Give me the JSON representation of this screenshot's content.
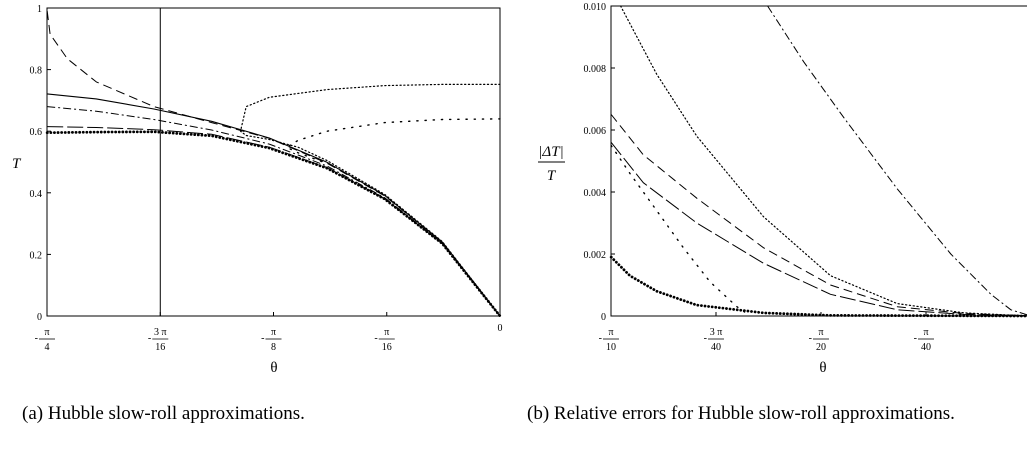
{
  "captions": {
    "a_label": "(a)",
    "a_text": "Hubble slow-roll approximations.",
    "b_label": "(b)",
    "b_text": "Relative errors for Hubble slow-roll approximations."
  },
  "chart_data": [
    {
      "type": "line",
      "title": "",
      "xlabel": "θ",
      "ylabel": "T",
      "xlim": [
        -0.7854,
        0
      ],
      "ylim": [
        0,
        1
      ],
      "xticks": [
        {
          "value": -0.7854,
          "sign": "-",
          "num": "π",
          "den": "4"
        },
        {
          "value": -0.589,
          "sign": "-",
          "num": "3 π",
          "den": "16"
        },
        {
          "value": -0.3927,
          "sign": "-",
          "num": "π",
          "den": "8"
        },
        {
          "value": -0.19635,
          "sign": "-",
          "num": "π",
          "den": "16"
        },
        {
          "value": 0,
          "sign": "",
          "num": "0",
          "den": ""
        }
      ],
      "yticks": [
        "0",
        "0.2",
        "0.4",
        "0.6",
        "0.8",
        "1"
      ],
      "vline_x": -0.589,
      "series": [
        {
          "style": "solid",
          "points": [
            [
              -0.785,
              0.721
            ],
            [
              -0.7,
              0.705
            ],
            [
              -0.6,
              0.672
            ],
            [
              -0.5,
              0.632
            ],
            [
              -0.4,
              0.578
            ],
            [
              -0.3,
              0.499
            ],
            [
              -0.2,
              0.392
            ],
            [
              -0.1,
              0.24
            ],
            [
              0,
              0
            ]
          ]
        },
        {
          "style": "dashed",
          "points": [
            [
              -0.785,
              0.99
            ],
            [
              -0.78,
              0.915
            ],
            [
              -0.75,
              0.835
            ],
            [
              -0.7,
              0.76
            ],
            [
              -0.6,
              0.68
            ],
            [
              -0.5,
              0.628
            ],
            [
              -0.4,
              0.577
            ],
            [
              -0.3,
              0.496
            ],
            [
              -0.2,
              0.39
            ],
            [
              -0.1,
              0.24
            ],
            [
              0,
              0
            ]
          ]
        },
        {
          "style": "dashdot",
          "points": [
            [
              -0.785,
              0.68
            ],
            [
              -0.7,
              0.665
            ],
            [
              -0.6,
              0.638
            ],
            [
              -0.5,
              0.604
            ],
            [
              -0.4,
              0.558
            ],
            [
              -0.3,
              0.487
            ],
            [
              -0.2,
              0.384
            ],
            [
              -0.1,
              0.236
            ],
            [
              0,
              0
            ]
          ]
        },
        {
          "style": "longdash",
          "points": [
            [
              -0.785,
              0.615
            ],
            [
              -0.7,
              0.612
            ],
            [
              -0.6,
              0.605
            ],
            [
              -0.5,
              0.59
            ],
            [
              -0.4,
              0.548
            ],
            [
              -0.3,
              0.482
            ],
            [
              -0.2,
              0.381
            ],
            [
              -0.1,
              0.235
            ],
            [
              0,
              0
            ]
          ]
        },
        {
          "style": "thickdot",
          "points": [
            [
              -0.785,
              0.595
            ],
            [
              -0.7,
              0.597
            ],
            [
              -0.6,
              0.598
            ],
            [
              -0.5,
              0.585
            ],
            [
              -0.4,
              0.545
            ],
            [
              -0.3,
              0.48
            ],
            [
              -0.2,
              0.38
            ],
            [
              -0.1,
              0.235
            ],
            [
              0,
              0
            ]
          ]
        },
        {
          "style": "dotted",
          "points": [
            [
              0,
              0.752
            ],
            [
              -0.1,
              0.752
            ],
            [
              -0.2,
              0.748
            ],
            [
              -0.3,
              0.735
            ],
            [
              -0.4,
              0.71
            ],
            [
              -0.44,
              0.68
            ],
            [
              -0.45,
              0.6
            ],
            [
              -0.44,
              0.586
            ],
            [
              -0.4,
              0.573
            ],
            [
              -0.35,
              0.548
            ],
            [
              -0.3,
              0.505
            ],
            [
              -0.2,
              0.395
            ],
            [
              -0.1,
              0.242
            ],
            [
              0,
              0
            ]
          ]
        },
        {
          "style": "sparsedot",
          "points": [
            [
              0,
              0.64
            ],
            [
              -0.1,
              0.638
            ],
            [
              -0.2,
              0.628
            ],
            [
              -0.3,
              0.6
            ],
            [
              -0.35,
              0.57
            ],
            [
              -0.37,
              0.548
            ],
            [
              -0.35,
              0.53
            ],
            [
              -0.3,
              0.495
            ]
          ]
        }
      ]
    },
    {
      "type": "line",
      "title": "",
      "xlabel": "θ",
      "ylabel_num": "|ΔT|",
      "ylabel_den": "T",
      "xlim": [
        -0.31416,
        0
      ],
      "ylim": [
        0,
        0.01
      ],
      "xticks": [
        {
          "value": -0.31416,
          "sign": "-",
          "num": "π",
          "den": "10"
        },
        {
          "value": -0.23562,
          "sign": "-",
          "num": "3 π",
          "den": "40"
        },
        {
          "value": -0.15708,
          "sign": "-",
          "num": "π",
          "den": "20"
        },
        {
          "value": -0.07854,
          "sign": "-",
          "num": "π",
          "den": "40"
        },
        {
          "value": 0,
          "sign": "",
          "num": "0",
          "den": ""
        }
      ],
      "yticks": [
        "0",
        "0.002",
        "0.004",
        "0.006",
        "0.008",
        "0.010"
      ],
      "series": [
        {
          "style": "dotted",
          "points": [
            [
              -0.307,
              0.01
            ],
            [
              -0.28,
              0.0078
            ],
            [
              -0.25,
              0.0058
            ],
            [
              -0.2,
              0.0032
            ],
            [
              -0.15,
              0.0013
            ],
            [
              -0.1,
              0.0004
            ],
            [
              -0.05,
              0.0001
            ],
            [
              0,
              0
            ]
          ]
        },
        {
          "style": "dashdot",
          "points": [
            [
              -0.197,
              0.01
            ],
            [
              -0.17,
              0.0082
            ],
            [
              -0.14,
              0.0064
            ],
            [
              -0.1,
              0.0041
            ],
            [
              -0.06,
              0.002
            ],
            [
              -0.03,
              0.0007
            ],
            [
              -0.015,
              0.0002
            ],
            [
              0,
              0
            ]
          ]
        },
        {
          "style": "dashed",
          "points": [
            [
              -0.314,
              0.0065
            ],
            [
              -0.29,
              0.0052
            ],
            [
              -0.25,
              0.0038
            ],
            [
              -0.2,
              0.0022
            ],
            [
              -0.15,
              0.001
            ],
            [
              -0.1,
              0.0003
            ],
            [
              -0.05,
              8e-05
            ],
            [
              0,
              0
            ]
          ]
        },
        {
          "style": "longdash",
          "points": [
            [
              -0.314,
              0.0056
            ],
            [
              -0.29,
              0.0043
            ],
            [
              -0.25,
              0.003
            ],
            [
              -0.2,
              0.0017
            ],
            [
              -0.15,
              0.0007
            ],
            [
              -0.1,
              0.0002
            ],
            [
              -0.05,
              5e-05
            ],
            [
              0,
              0
            ]
          ]
        },
        {
          "style": "sparsedot",
          "points": [
            [
              -0.314,
              0.0055
            ],
            [
              -0.3,
              0.0046
            ],
            [
              -0.28,
              0.0034
            ],
            [
              -0.26,
              0.0022
            ],
            [
              -0.24,
              0.0011
            ],
            [
              -0.22,
              0.0003
            ],
            [
              -0.21,
              0
            ]
          ]
        },
        {
          "style": "thickdot",
          "points": [
            [
              -0.314,
              0.0019
            ],
            [
              -0.3,
              0.0013
            ],
            [
              -0.28,
              0.0008
            ],
            [
              -0.25,
              0.00035
            ],
            [
              -0.2,
              0.0001
            ],
            [
              -0.15,
              2e-05
            ],
            [
              0,
              0
            ]
          ]
        }
      ]
    }
  ]
}
